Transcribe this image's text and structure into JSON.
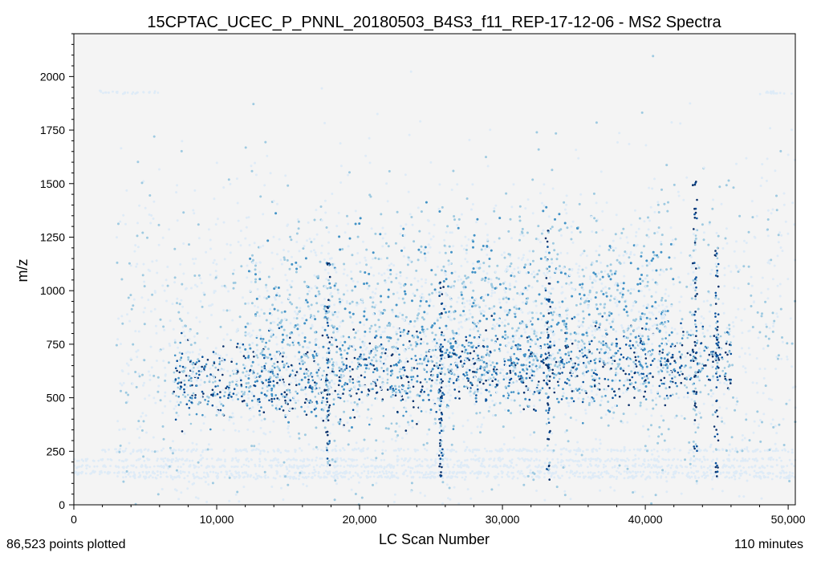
{
  "chart_data": {
    "type": "scatter",
    "title": "15CPTAC_UCEC_P_PNNL_20180503_B4S3_f11_REP-17-12-06 - MS2 Spectra",
    "xlabel": "LC Scan Number",
    "ylabel": "m/z",
    "xlim": [
      0,
      50500
    ],
    "ylim": [
      0,
      2200
    ],
    "x_ticks": [
      0,
      10000,
      20000,
      30000,
      40000,
      50000
    ],
    "x_tick_labels": [
      "0",
      "10,000",
      "20,000",
      "30,000",
      "40,000",
      "50,000"
    ],
    "y_ticks": [
      0,
      250,
      500,
      750,
      1000,
      1250,
      1500,
      1750,
      2000
    ],
    "y_tick_labels": [
      "0",
      "250",
      "500",
      "750",
      "1000",
      "1250",
      "1500",
      "1750",
      "2000"
    ],
    "grid": false,
    "colormap": "Blues",
    "colors": {
      "background": "#f4f4f4",
      "low": "#deebf7",
      "mid_low": "#9ecae1",
      "mid": "#4292c6",
      "high": "#08519c",
      "peak": "#08306b"
    },
    "density_regions": [
      {
        "x_range": [
          7000,
          46000
        ],
        "mz_center": 560,
        "mz_spread": 90,
        "intensity": "high"
      },
      {
        "x_range": [
          12000,
          42000
        ],
        "mz_center": 800,
        "mz_spread": 220,
        "intensity": "mid"
      },
      {
        "x_range": [
          3000,
          50500
        ],
        "mz_center": 700,
        "mz_spread": 420,
        "intensity": "low"
      }
    ],
    "bands": [
      {
        "mz": 130,
        "x_range": [
          3000,
          50500
        ]
      },
      {
        "mz": 150,
        "x_range": [
          0,
          50500
        ]
      },
      {
        "mz": 180,
        "x_range": [
          0,
          50500
        ]
      },
      {
        "mz": 210,
        "x_range": [
          0,
          50500
        ]
      },
      {
        "mz": 255,
        "x_range": [
          2000,
          50500
        ]
      },
      {
        "mz": 1925,
        "x_range": [
          1800,
          6000
        ]
      },
      {
        "mz": 1925,
        "x_range": [
          48000,
          50500
        ]
      }
    ],
    "vertical_lines": [
      {
        "x": 17800,
        "mz_range": [
          150,
          1130
        ]
      },
      {
        "x": 25700,
        "mz_range": [
          130,
          1050
        ]
      },
      {
        "x": 33200,
        "mz_range": [
          110,
          1300
        ]
      },
      {
        "x": 43500,
        "mz_range": [
          220,
          1510
        ]
      },
      {
        "x": 45000,
        "mz_range": [
          120,
          1200
        ]
      }
    ],
    "points_plotted": 86523,
    "run_length_minutes": 110
  },
  "footer": {
    "points_label": "86,523 points plotted",
    "duration_label": "110 minutes"
  }
}
